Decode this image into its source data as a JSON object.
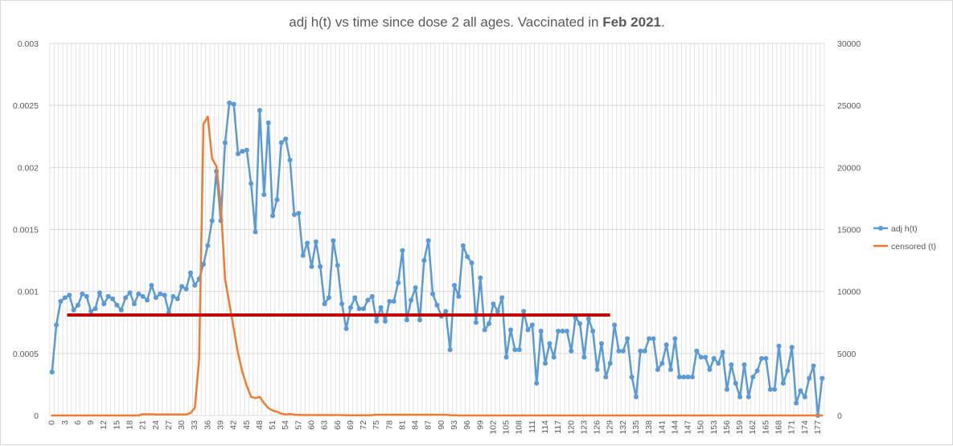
{
  "chart_data": {
    "type": "line",
    "title": {
      "prefix": "adj h(t) vs time since dose 2 all ages. Vaccinated in ",
      "bold": "Feb 2021",
      "suffix": "."
    },
    "xlabel": "",
    "ylabel_left": "",
    "ylabel_right": "",
    "x_range": [
      0,
      178
    ],
    "x_tick_step": 3,
    "y_left_range": [
      0,
      0.003
    ],
    "y_left_ticks": [
      "0",
      "0.0005",
      "0.001",
      "0.0015",
      "0.002",
      "0.0025",
      "0.003"
    ],
    "y_right_range": [
      0,
      30000
    ],
    "y_right_ticks": [
      "0",
      "5000",
      "10000",
      "15000",
      "20000",
      "25000",
      "30000"
    ],
    "grid": true,
    "legend_position": "right",
    "series": [
      {
        "name": "adj h(t)",
        "axis": "left",
        "color": "#5b9bd5",
        "marker": "circle",
        "values": [
          0.00035,
          0.00073,
          0.00092,
          0.00095,
          0.00097,
          0.00085,
          0.00089,
          0.00098,
          0.00096,
          0.00084,
          0.00086,
          0.00099,
          0.0009,
          0.00096,
          0.00094,
          0.00089,
          0.00085,
          0.00095,
          0.00099,
          0.0009,
          0.00098,
          0.00096,
          0.00093,
          0.00105,
          0.00095,
          0.00098,
          0.00097,
          0.00083,
          0.00096,
          0.00094,
          0.00104,
          0.00102,
          0.00115,
          0.00105,
          0.0011,
          0.00122,
          0.00137,
          0.00157,
          0.00197,
          0.00157,
          0.0022,
          0.00252,
          0.00251,
          0.00211,
          0.00213,
          0.00214,
          0.00187,
          0.00148,
          0.00246,
          0.00178,
          0.00236,
          0.00161,
          0.00174,
          0.0022,
          0.00223,
          0.00206,
          0.00162,
          0.00163,
          0.00129,
          0.00139,
          0.0012,
          0.0014,
          0.0012,
          0.0009,
          0.00095,
          0.00141,
          0.00121,
          0.0009,
          0.0007,
          0.00087,
          0.00095,
          0.00086,
          0.00086,
          0.00093,
          0.00096,
          0.00076,
          0.00087,
          0.00076,
          0.00092,
          0.00092,
          0.00107,
          0.00133,
          0.00077,
          0.00093,
          0.00103,
          0.00077,
          0.00125,
          0.00141,
          0.00098,
          0.00089,
          0.0008,
          0.00084,
          0.00053,
          0.00105,
          0.00096,
          0.00137,
          0.00128,
          0.00123,
          0.00075,
          0.00111,
          0.00069,
          0.00074,
          0.0009,
          0.00084,
          0.00095,
          0.00047,
          0.00069,
          0.00053,
          0.00053,
          0.00084,
          0.00069,
          0.00073,
          0.00026,
          0.00068,
          0.00042,
          0.00058,
          0.00047,
          0.00068,
          0.00068,
          0.00068,
          0.00052,
          0.00079,
          0.00074,
          0.00047,
          0.00078,
          0.00068,
          0.00037,
          0.00058,
          0.00031,
          0.00042,
          0.00073,
          0.00052,
          0.00052,
          0.00062,
          0.00031,
          0.00015,
          0.00052,
          0.00052,
          0.00062,
          0.00062,
          0.00037,
          0.00042,
          0.00057,
          0.00037,
          0.00062,
          0.00031,
          0.00031,
          0.00031,
          0.00031,
          0.00052,
          0.00047,
          0.00047,
          0.00037,
          0.00046,
          0.00042,
          0.00051,
          0.00021,
          0.00041,
          0.00026,
          0.00015,
          0.00041,
          0.00015,
          0.00031,
          0.00036,
          0.00046,
          0.00046,
          0.00021,
          0.00021,
          0.00056,
          0.00026,
          0.00036,
          0.00055,
          0.0001,
          0.0002,
          0.00015,
          0.0003,
          0.0004,
          0.0,
          0.0003
        ]
      },
      {
        "name": "censored (t)",
        "axis": "right",
        "color": "#ed7d31",
        "marker": "none",
        "values": [
          0,
          0,
          0,
          0,
          0,
          0,
          0,
          0,
          0,
          0,
          0,
          0,
          0,
          0,
          0,
          0,
          0,
          0,
          0,
          0,
          0,
          100,
          100,
          100,
          80,
          80,
          80,
          80,
          80,
          80,
          80,
          80,
          200,
          600,
          4500,
          23500,
          24100,
          20700,
          20100,
          17000,
          11000,
          9000,
          7000,
          5000,
          3500,
          2400,
          1500,
          1400,
          1500,
          1000,
          600,
          400,
          300,
          150,
          80,
          120,
          60,
          50,
          30,
          30,
          30,
          30,
          30,
          30,
          30,
          30,
          30,
          30,
          20,
          20,
          20,
          20,
          20,
          20,
          30,
          60,
          60,
          60,
          60,
          60,
          60,
          60,
          60,
          60,
          60,
          60,
          60,
          60,
          60,
          60,
          60,
          60,
          20,
          20,
          0,
          0,
          0,
          0,
          0,
          0,
          0,
          0,
          0,
          0,
          0,
          0,
          0,
          0,
          0,
          0,
          0,
          0,
          0,
          0,
          0,
          0,
          0,
          0,
          0,
          0,
          0,
          0,
          0,
          0,
          0,
          0,
          0,
          0,
          0,
          0,
          0,
          0,
          0,
          0,
          0,
          0,
          0,
          0,
          0,
          0,
          0,
          0,
          0,
          0,
          0,
          0,
          0,
          0,
          0,
          0,
          0,
          0,
          0,
          0,
          0,
          0,
          0,
          0,
          0,
          0,
          0,
          0,
          0,
          0,
          0,
          0,
          0,
          0,
          0,
          0,
          0,
          0,
          0,
          0,
          0,
          0,
          0,
          0,
          0
        ]
      }
    ],
    "annotations": [
      {
        "type": "horizontal-line",
        "name": "average-level-line",
        "color": "#c00000",
        "y": 0.00081,
        "x_from": 3.5,
        "x_to": 129
      }
    ]
  }
}
